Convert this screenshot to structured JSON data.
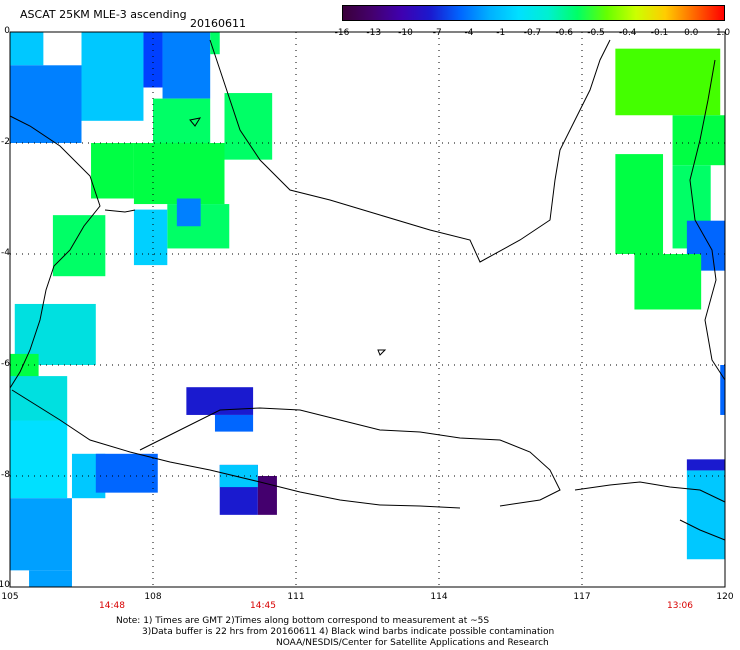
{
  "header": {
    "title": "ASCAT 25KM MLE-3 ascending",
    "date": "20160611"
  },
  "colorbar": {
    "ticks": [
      "-16",
      "-13",
      "-10",
      "-7",
      "-4",
      "-1",
      "-0.7",
      "-0.6",
      "-0.5",
      "-0.4",
      "-0.1",
      "0.0",
      "1.0"
    ],
    "colors": [
      "#3a003a",
      "#44006e",
      "#3f00b0",
      "#1a1acf",
      "#0066ff",
      "#00b0ff",
      "#00e0ff",
      "#00f0d0",
      "#00ff66",
      "#66ff00",
      "#ccff00",
      "#ffcc00",
      "#ff6600",
      "#ff0000"
    ]
  },
  "map": {
    "lat_labels": [
      "0",
      "-2",
      "-4",
      "-6",
      "-8",
      "-10"
    ],
    "lon_labels": [
      "105",
      "108",
      "111",
      "114",
      "117",
      "120"
    ],
    "lon_range": [
      105,
      120
    ],
    "lat_range": [
      -10,
      0
    ],
    "pass_times": [
      {
        "label": "14:48"
      },
      {
        "label": "14:45"
      },
      {
        "label": "13:06"
      }
    ],
    "swaths": [
      {
        "lon": [
          105.0,
          105.7
        ],
        "lat": [
          -0.6,
          0.0
        ],
        "level": "#00c8ff"
      },
      {
        "lon": [
          105.0,
          106.5
        ],
        "lat": [
          -2.0,
          -0.6
        ],
        "level": "#0080ff"
      },
      {
        "lon": [
          106.5,
          107.8
        ],
        "lat": [
          -1.6,
          0.0
        ],
        "level": "#00c8ff"
      },
      {
        "lon": [
          107.8,
          108.2
        ],
        "lat": [
          -1.0,
          0.0
        ],
        "level": "#0040ff"
      },
      {
        "lon": [
          108.2,
          109.2
        ],
        "lat": [
          -1.2,
          0.0
        ],
        "level": "#0080ff"
      },
      {
        "lon": [
          109.2,
          109.4
        ],
        "lat": [
          -0.4,
          0.0
        ],
        "level": "#00ff66"
      },
      {
        "lon": [
          108.0,
          109.2
        ],
        "lat": [
          -2.0,
          -1.2
        ],
        "level": "#00ff66"
      },
      {
        "lon": [
          107.6,
          109.5
        ],
        "lat": [
          -3.1,
          -2.0
        ],
        "level": "#00ff44"
      },
      {
        "lon": [
          106.7,
          107.6
        ],
        "lat": [
          -3.0,
          -2.0
        ],
        "level": "#00ff44"
      },
      {
        "lon": [
          109.5,
          110.5
        ],
        "lat": [
          -2.3,
          -1.1
        ],
        "level": "#00ff66"
      },
      {
        "lon": [
          108.3,
          109.6
        ],
        "lat": [
          -3.9,
          -3.1
        ],
        "level": "#00ff66"
      },
      {
        "lon": [
          108.5,
          109.0
        ],
        "lat": [
          -3.5,
          -3.0
        ],
        "level": "#0080ff"
      },
      {
        "lon": [
          105.9,
          107.0
        ],
        "lat": [
          -4.4,
          -3.3
        ],
        "level": "#00ff66"
      },
      {
        "lon": [
          107.6,
          108.3
        ],
        "lat": [
          -4.2,
          -3.2
        ],
        "level": "#00d0ff"
      },
      {
        "lon": [
          105.1,
          106.8
        ],
        "lat": [
          -6.0,
          -4.9
        ],
        "level": "#00e0e0"
      },
      {
        "lon": [
          105.0,
          105.6
        ],
        "lat": [
          -6.3,
          -5.8
        ],
        "level": "#00ff44"
      },
      {
        "lon": [
          105.0,
          106.2
        ],
        "lat": [
          -7.0,
          -6.2
        ],
        "level": "#00e0e0"
      },
      {
        "lon": [
          105.0,
          106.2
        ],
        "lat": [
          -8.4,
          -7.0
        ],
        "level": "#00e0ff"
      },
      {
        "lon": [
          106.3,
          107.0
        ],
        "lat": [
          -8.4,
          -7.6
        ],
        "level": "#00c8ff"
      },
      {
        "lon": [
          106.8,
          108.1
        ],
        "lat": [
          -8.3,
          -7.6
        ],
        "level": "#0066ff"
      },
      {
        "lon": [
          105.0,
          106.3
        ],
        "lat": [
          -9.7,
          -8.4
        ],
        "level": "#00a0ff"
      },
      {
        "lon": [
          105.4,
          106.3
        ],
        "lat": [
          -10.0,
          -9.7
        ],
        "level": "#00a0ff"
      },
      {
        "lon": [
          108.7,
          110.1
        ],
        "lat": [
          -6.9,
          -6.4
        ],
        "level": "#1a1acf"
      },
      {
        "lon": [
          109.3,
          110.1
        ],
        "lat": [
          -7.2,
          -6.9
        ],
        "level": "#0066ff"
      },
      {
        "lon": [
          109.4,
          110.2
        ],
        "lat": [
          -8.7,
          -7.8
        ],
        "level": "#1a1acf"
      },
      {
        "lon": [
          110.2,
          110.6
        ],
        "lat": [
          -8.7,
          -8.0
        ],
        "level": "#44006e"
      },
      {
        "lon": [
          109.4,
          110.2
        ],
        "lat": [
          -8.2,
          -7.8
        ],
        "level": "#00c8ff"
      },
      {
        "lon": [
          117.7,
          119.9
        ],
        "lat": [
          -1.5,
          -0.3
        ],
        "level": "#44ff00"
      },
      {
        "lon": [
          118.9,
          120.0
        ],
        "lat": [
          -2.4,
          -1.5
        ],
        "level": "#00ff44"
      },
      {
        "lon": [
          117.7,
          118.7
        ],
        "lat": [
          -4.0,
          -2.2
        ],
        "level": "#00ff44"
      },
      {
        "lon": [
          118.9,
          119.7
        ],
        "lat": [
          -3.9,
          -2.4
        ],
        "level": "#00ff66"
      },
      {
        "lon": [
          119.2,
          120.0
        ],
        "lat": [
          -4.3,
          -3.4
        ],
        "level": "#0066ff"
      },
      {
        "lon": [
          118.1,
          119.5
        ],
        "lat": [
          -5.0,
          -4.0
        ],
        "level": "#00ff44"
      },
      {
        "lon": [
          119.9,
          120.0
        ],
        "lat": [
          -6.9,
          -6.0
        ],
        "level": "#0066ff"
      },
      {
        "lon": [
          119.2,
          120.0
        ],
        "lat": [
          -7.9,
          -7.7
        ],
        "level": "#1a1acf"
      },
      {
        "lon": [
          119.2,
          120.0
        ],
        "lat": [
          -9.5,
          -7.9
        ],
        "level": "#00c8ff"
      }
    ]
  },
  "notes": {
    "line1": "Note: 1) Times are GMT 2)Times along bottom correspond to measurement at ~5S",
    "line2": "3)Data buffer is 22 hrs from 20160611 4) Black wind barbs indicate possible contamination",
    "line3": "NOAA/NESDIS/Center for Satellite Applications and Research"
  }
}
